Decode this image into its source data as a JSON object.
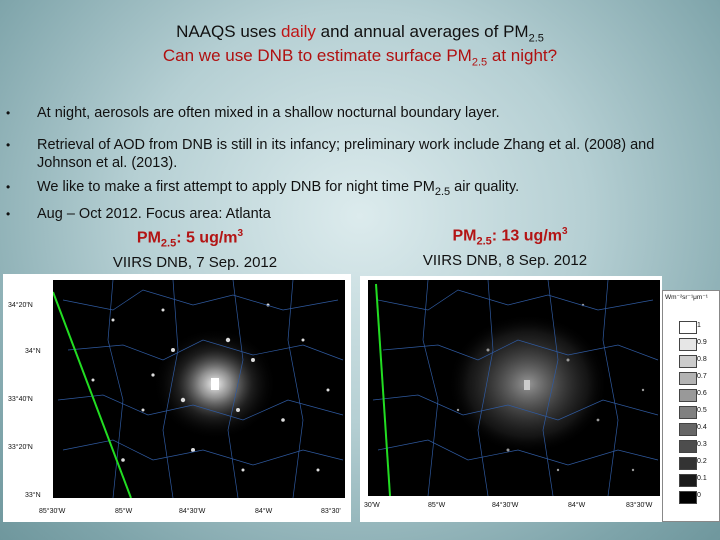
{
  "title": {
    "line1_prefix": "NAAQS uses ",
    "line1_highlight": "daily",
    "line1_mid": " and annual averages of PM",
    "line1_sub": "2.5",
    "line2_prefix": "Can we use DNB to estimate surface PM",
    "line2_sub": "2.5",
    "line2_suffix": " at night?"
  },
  "bullets": [
    {
      "marker": "•",
      "text": "At night, aerosols are often mixed in a shallow nocturnal boundary layer."
    },
    {
      "marker": "•",
      "text": "Retrieval of AOD from DNB is still in its infancy; preliminary work include Zhang et al. (2008) and Johnson et al. (2013)."
    },
    {
      "marker": "•",
      "prefix": "We like to make a first attempt to apply DNB for night time PM",
      "sub": "2.5",
      "suffix": " air quality."
    },
    {
      "marker": "•",
      "text": "Aug – Oct 2012. Focus area: Atlanta"
    }
  ],
  "panels": [
    {
      "pm_prefix": "PM",
      "pm_sub": "2.5",
      "pm_value": ": 5 ug/m",
      "pm_sup": "3",
      "caption": "VIIRS DNB,  7 Sep. 2012",
      "y_labels": [
        "34°20'N",
        "34°N",
        "33°40'N",
        "33°20'N",
        "33°N"
      ],
      "x_labels": [
        "85°30'W",
        "85°W",
        "84°30'W",
        "84°W",
        "83°30'"
      ]
    },
    {
      "pm_prefix": "PM",
      "pm_sub": "2.5",
      "pm_value": ": 13 ug/m",
      "pm_sup": "3",
      "caption": "VIIRS DNB,  8 Sep. 2012",
      "x_labels": [
        "30'W",
        "85°W",
        "84°30'W",
        "84°W",
        "83°30'W"
      ]
    }
  ],
  "colorbar": {
    "unit": "Wm⁻²sr⁻¹μm⁻¹",
    "ticks": [
      "1",
      "0.9",
      "0.8",
      "0.7",
      "0.6",
      "0.5",
      "0.4",
      "0.3",
      "0.2",
      "0.1",
      "0"
    ],
    "shades": [
      "#ffffff",
      "#e6e6e6",
      "#cccccc",
      "#b3b3b3",
      "#999999",
      "#808080",
      "#666666",
      "#4d4d4d",
      "#333333",
      "#1a1a1a",
      "#000000"
    ]
  }
}
